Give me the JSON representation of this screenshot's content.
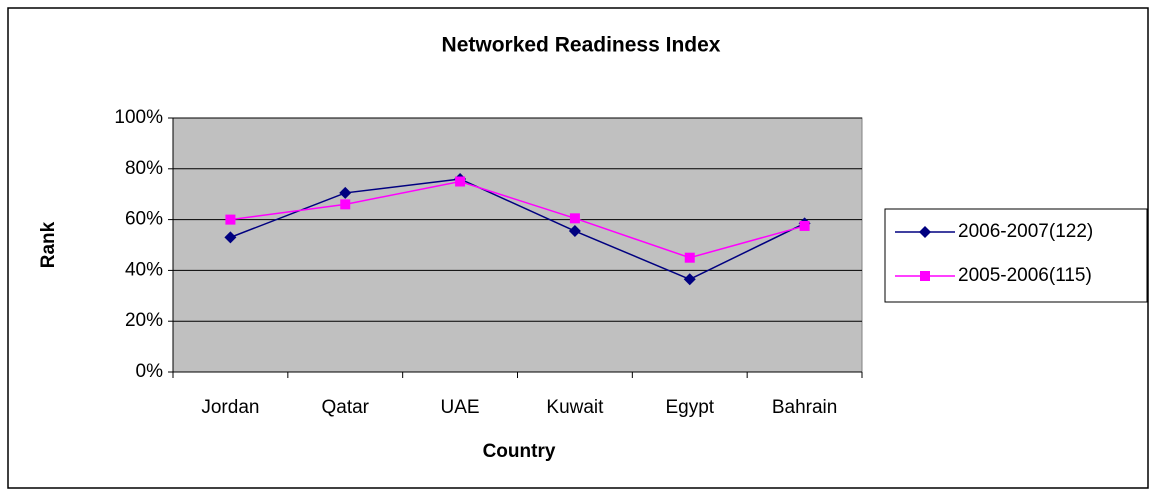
{
  "chart_data": {
    "type": "line",
    "title": "Networked Readiness Index",
    "x_label": "Country",
    "y_label": "Rank",
    "categories": [
      "Jordan",
      "Qatar",
      "UAE",
      "Kuwait",
      "Egypt",
      "Bahrain"
    ],
    "series": [
      {
        "name": "2006-2007(122)",
        "color": "#000080",
        "marker": "diamond",
        "values": [
          53,
          70.5,
          76,
          55.5,
          36.5,
          58.5
        ]
      },
      {
        "name": "2005-2006(115)",
        "color": "#ff00ff",
        "marker": "square",
        "values": [
          60,
          66,
          75,
          60.5,
          45,
          57.5
        ]
      }
    ],
    "ylim": [
      0,
      100
    ],
    "yticks": [
      {
        "value": 0,
        "label": "0%"
      },
      {
        "value": 20,
        "label": "20%"
      },
      {
        "value": 40,
        "label": "40%"
      },
      {
        "value": 60,
        "label": "60%"
      },
      {
        "value": 80,
        "label": "80%"
      },
      {
        "value": 100,
        "label": "100%"
      }
    ],
    "grid": true,
    "legend": "right",
    "plot_background": "#c0c0c0"
  }
}
